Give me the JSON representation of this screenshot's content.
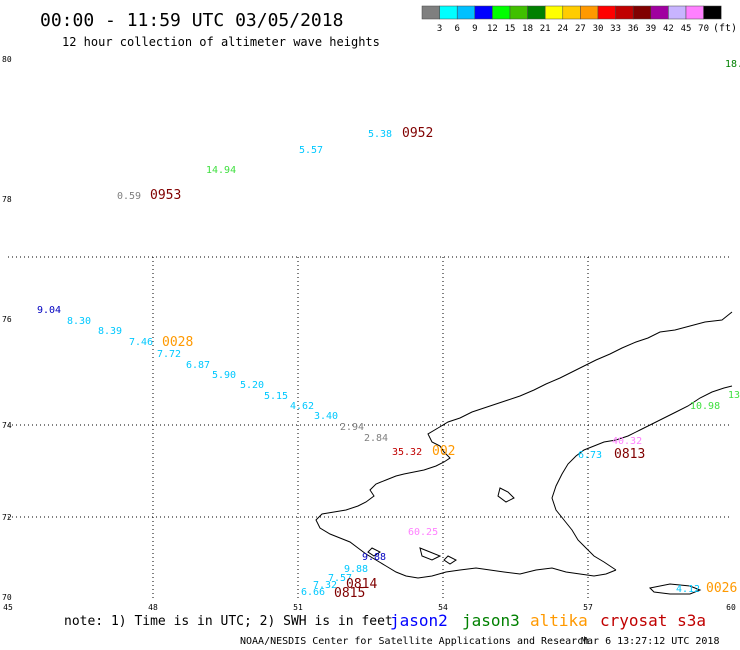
{
  "title": "00:00 - 11:59 UTC 03/05/2018",
  "subtitle": "12 hour collection of altimeter wave heights",
  "legend": {
    "colors": [
      "#7f7f7f",
      "#00ffff",
      "#00c0ff",
      "#0000ff",
      "#00ff00",
      "#40c000",
      "#008000",
      "#ffff00",
      "#ffcc00",
      "#ff9900",
      "#ff0000",
      "#c00000",
      "#800000",
      "#a000a0",
      "#c8b4ff",
      "#ff80ff",
      "#000000"
    ],
    "labels": [
      "3",
      "6",
      "9",
      "12",
      "15",
      "18",
      "21",
      "24",
      "27",
      "30",
      "33",
      "36",
      "39",
      "42",
      "45",
      "70"
    ],
    "unit": "(ft)"
  },
  "axes": {
    "x_ticks": [
      "45",
      "48",
      "51",
      "54",
      "57",
      "60"
    ],
    "y_ticks": [
      "80",
      "78",
      "76",
      "74",
      "72",
      "70"
    ]
  },
  "labels": [
    {
      "text": "5.38",
      "color": "#00c8ff"
    },
    {
      "text": "0952",
      "color": "#800000"
    },
    {
      "text": "5.57",
      "color": "#00c8ff"
    },
    {
      "text": "14.94",
      "color": "#40e040"
    },
    {
      "text": "0.59",
      "color": "#7f7f7f"
    },
    {
      "text": "0953",
      "color": "#800000"
    },
    {
      "text": "18.",
      "color": "#008000"
    },
    {
      "text": "9.04",
      "color": "#0000c0"
    },
    {
      "text": "8.30",
      "color": "#00c8ff"
    },
    {
      "text": "8.39",
      "color": "#00c8ff"
    },
    {
      "text": "7.46",
      "color": "#00c8ff"
    },
    {
      "text": "0028",
      "color": "#ff9900"
    },
    {
      "text": "7.72",
      "color": "#00c8ff"
    },
    {
      "text": "6.87",
      "color": "#00c8ff"
    },
    {
      "text": "5.90",
      "color": "#00c8ff"
    },
    {
      "text": "5.20",
      "color": "#00c8ff"
    },
    {
      "text": "5.15",
      "color": "#00c8ff"
    },
    {
      "text": "4.62",
      "color": "#00c8ff"
    },
    {
      "text": "3.40",
      "color": "#00c8ff"
    },
    {
      "text": "2.94",
      "color": "#7f7f7f"
    },
    {
      "text": "2.84",
      "color": "#7f7f7f"
    },
    {
      "text": "35.32",
      "color": "#c00000"
    },
    {
      "text": "002",
      "color": "#ff9900"
    },
    {
      "text": "6.73",
      "color": "#00c8ff"
    },
    {
      "text": "0813",
      "color": "#800000"
    },
    {
      "text": "40.32",
      "color": "#ff80ff"
    },
    {
      "text": "10.98",
      "color": "#40e040"
    },
    {
      "text": "13",
      "color": "#40e040"
    },
    {
      "text": "60.25",
      "color": "#ff80ff"
    },
    {
      "text": "9.88",
      "color": "#0000c0"
    },
    {
      "text": "9.88",
      "color": "#00c8ff"
    },
    {
      "text": "7.57",
      "color": "#00c8ff"
    },
    {
      "text": "7.32",
      "color": "#00c8ff"
    },
    {
      "text": "6.66",
      "color": "#00c8ff"
    },
    {
      "text": "0814",
      "color": "#800000"
    },
    {
      "text": "0815",
      "color": "#800000"
    },
    {
      "text": "4.12",
      "color": "#00c8ff"
    },
    {
      "text": "0026",
      "color": "#ff9900"
    }
  ],
  "footer": {
    "note": "note: 1) Time is in UTC; 2) SWH is in feet",
    "satellites": [
      {
        "name": "jason2",
        "color": "#0000ff"
      },
      {
        "name": "jason3",
        "color": "#008000"
      },
      {
        "name": "altika",
        "color": "#ff9900"
      },
      {
        "name": "cryosat s3a",
        "color": "#c00000"
      }
    ],
    "credit": "NOAA/NESDIS Center for Satellite Applications and Research",
    "timestamp": "Mar  6 13:27:12 UTC 2018"
  }
}
